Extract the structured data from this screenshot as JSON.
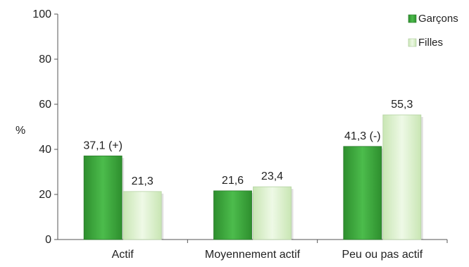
{
  "chart_data": {
    "type": "bar",
    "categories": [
      "Actif",
      "Moyennement actif",
      "Peu ou pas actif"
    ],
    "series": [
      {
        "name": "Garçons",
        "values": [
          37.1,
          21.6,
          41.3
        ],
        "labels": [
          "37,1 (+)",
          "21,6",
          "41,3 (-)"
        ],
        "color": "#3aa83a"
      },
      {
        "name": "Filles",
        "values": [
          21.3,
          23.4,
          55.3
        ],
        "labels": [
          "21,3",
          "23,4",
          "55,3"
        ],
        "color": "#d9f0c8"
      }
    ],
    "ylabel": "%",
    "ylim": [
      0,
      100
    ],
    "yticks": [
      0,
      20,
      40,
      60,
      80,
      100
    ],
    "grid": false,
    "legend_position": "top-right"
  }
}
